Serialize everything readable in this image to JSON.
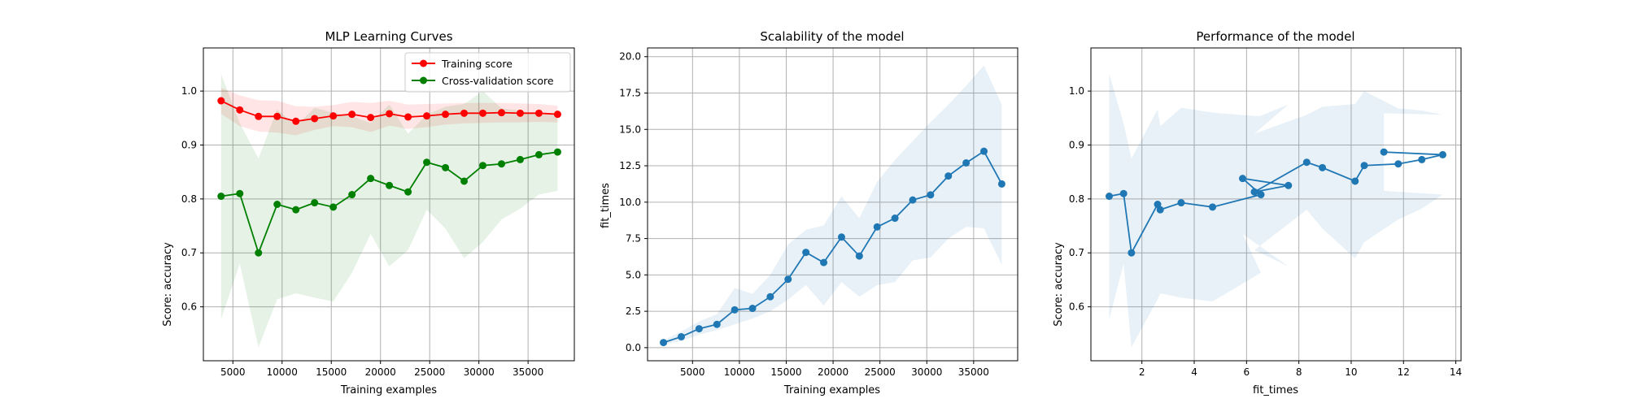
{
  "chart_data": [
    {
      "type": "line",
      "title": "MLP Learning Curves",
      "xlabel": "Training examples",
      "ylabel": "Score: accuracy",
      "xlim": [
        2000,
        39700
      ],
      "ylim": [
        0.5,
        1.08
      ],
      "xticks": [
        5000,
        10000,
        15000,
        20000,
        25000,
        30000,
        35000
      ],
      "xtick_labels": [
        "5000",
        "10000",
        "15000",
        "20000",
        "25000",
        "30000",
        "35000"
      ],
      "yticks": [
        0.6,
        0.7,
        0.8,
        0.9,
        1.0
      ],
      "ytick_labels": [
        "0.6",
        "0.7",
        "0.8",
        "0.9",
        "1.0"
      ],
      "grid": true,
      "legend_position": "upper right",
      "x": [
        3800,
        5700,
        7600,
        9500,
        11400,
        13300,
        15200,
        17100,
        19000,
        20900,
        22800,
        24700,
        26600,
        28500,
        30400,
        32300,
        34200,
        36100,
        38000
      ],
      "series": [
        {
          "name": "Training score",
          "color": "#ff0000",
          "values": [
            0.982,
            0.965,
            0.953,
            0.953,
            0.944,
            0.949,
            0.954,
            0.957,
            0.951,
            0.958,
            0.952,
            0.954,
            0.957,
            0.959,
            0.959,
            0.96,
            0.959,
            0.959,
            0.957
          ],
          "band_low": [
            0.958,
            0.935,
            0.925,
            0.923,
            0.918,
            0.928,
            0.935,
            0.933,
            0.924,
            0.936,
            0.93,
            0.933,
            0.938,
            0.94,
            0.941,
            0.942,
            0.942,
            0.943,
            0.942
          ],
          "band_high": [
            1.006,
            0.992,
            0.983,
            0.982,
            0.972,
            0.971,
            0.974,
            0.98,
            0.978,
            0.982,
            0.975,
            0.976,
            0.977,
            0.978,
            0.978,
            0.978,
            0.977,
            0.976,
            0.973
          ]
        },
        {
          "name": "Cross-validation score",
          "color": "#008000",
          "values": [
            0.805,
            0.81,
            0.7,
            0.79,
            0.78,
            0.793,
            0.785,
            0.808,
            0.838,
            0.825,
            0.813,
            0.868,
            0.858,
            0.833,
            0.862,
            0.865,
            0.873,
            0.882,
            0.887
          ],
          "band_low": [
            0.577,
            0.68,
            0.525,
            0.614,
            0.625,
            0.617,
            0.61,
            0.663,
            0.735,
            0.675,
            0.705,
            0.78,
            0.745,
            0.69,
            0.72,
            0.762,
            0.782,
            0.808,
            0.815
          ],
          "band_high": [
            1.032,
            0.94,
            0.875,
            0.966,
            0.935,
            0.969,
            0.96,
            0.953,
            0.941,
            0.975,
            0.921,
            0.956,
            0.971,
            0.976,
            1.0,
            0.968,
            0.964,
            0.956,
            0.959
          ]
        }
      ]
    },
    {
      "type": "line",
      "title": "Scalability of the model",
      "xlabel": "Training examples",
      "ylabel": "fit_times",
      "xlim": [
        200,
        39700
      ],
      "ylim": [
        -0.9,
        20.6
      ],
      "xticks": [
        5000,
        10000,
        15000,
        20000,
        25000,
        30000,
        35000
      ],
      "xtick_labels": [
        "5000",
        "10000",
        "15000",
        "20000",
        "25000",
        "30000",
        "35000"
      ],
      "yticks": [
        0,
        2.5,
        5,
        7.5,
        10,
        12.5,
        15,
        17.5,
        20
      ],
      "ytick_labels": [
        "0.0",
        "2.5",
        "5.0",
        "7.5",
        "10.0",
        "12.5",
        "15.0",
        "17.5",
        "20.0"
      ],
      "grid": true,
      "x": [
        1900,
        3800,
        5700,
        7600,
        9500,
        11400,
        13300,
        15200,
        17100,
        19000,
        20900,
        22800,
        24700,
        26600,
        28500,
        30400,
        32300,
        34200,
        36100,
        38000
      ],
      "series": [
        {
          "color": "#1f77b4",
          "values": [
            0.35,
            0.75,
            1.3,
            1.6,
            2.6,
            2.7,
            3.5,
            4.7,
            6.55,
            5.85,
            7.6,
            6.3,
            8.3,
            8.9,
            10.15,
            10.5,
            11.8,
            12.7,
            13.5,
            11.25
          ],
          "band_low": [
            0.25,
            0.45,
            0.9,
            1.2,
            1.6,
            2.0,
            2.5,
            3.3,
            4.3,
            2.9,
            4.5,
            3.5,
            4.3,
            4.5,
            6.0,
            6.2,
            7.5,
            8.3,
            8.2,
            5.7
          ],
          "band_high": [
            0.5,
            1.1,
            1.8,
            2.3,
            4.1,
            3.7,
            5.0,
            7.1,
            8.1,
            8.4,
            10.4,
            8.9,
            11.4,
            12.9,
            14.2,
            15.5,
            16.7,
            18.0,
            19.4,
            16.7
          ]
        }
      ]
    },
    {
      "type": "line",
      "title": "Performance of the model",
      "xlabel": "fit_times",
      "ylabel": "Score: accuracy",
      "xlim": [
        0.05,
        14.2
      ],
      "ylim": [
        0.5,
        1.08
      ],
      "xticks": [
        2,
        4,
        6,
        8,
        10,
        12,
        14
      ],
      "xtick_labels": [
        "2",
        "4",
        "6",
        "8",
        "10",
        "12",
        "14"
      ],
      "yticks": [
        0.6,
        0.7,
        0.8,
        0.9,
        1.0
      ],
      "ytick_labels": [
        "0.6",
        "0.7",
        "0.8",
        "0.9",
        "1.0"
      ],
      "grid": true,
      "series": [
        {
          "color": "#1f77b4",
          "x": [
            0.75,
            1.3,
            1.6,
            2.6,
            2.7,
            3.5,
            4.7,
            6.55,
            5.85,
            7.6,
            6.3,
            8.3,
            8.9,
            10.15,
            10.5,
            11.8,
            12.7,
            13.5,
            11.25
          ],
          "values": [
            0.805,
            0.81,
            0.7,
            0.79,
            0.78,
            0.793,
            0.785,
            0.808,
            0.838,
            0.825,
            0.813,
            0.868,
            0.858,
            0.833,
            0.862,
            0.865,
            0.873,
            0.882,
            0.887
          ],
          "band_low": [
            0.577,
            0.68,
            0.525,
            0.614,
            0.625,
            0.617,
            0.61,
            0.663,
            0.735,
            0.675,
            0.705,
            0.78,
            0.745,
            0.69,
            0.72,
            0.762,
            0.782,
            0.808,
            0.815
          ],
          "band_high": [
            1.032,
            0.94,
            0.875,
            0.966,
            0.935,
            0.969,
            0.96,
            0.953,
            0.941,
            0.975,
            0.921,
            0.956,
            0.971,
            0.976,
            1.0,
            0.968,
            0.964,
            0.956,
            0.959
          ]
        }
      ]
    }
  ]
}
